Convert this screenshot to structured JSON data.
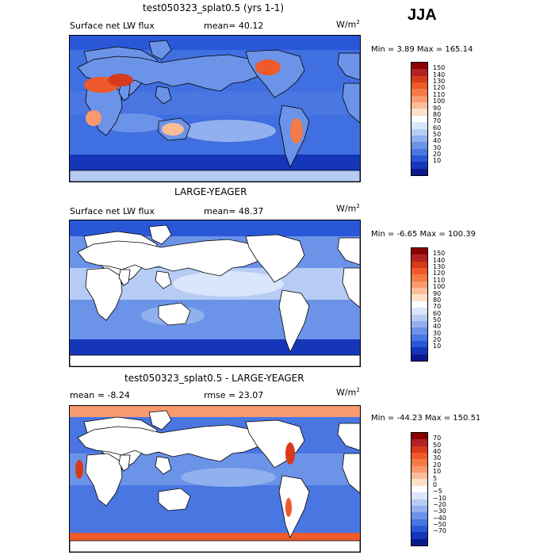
{
  "season": "JJA",
  "panels": [
    {
      "title": "test050323_splat0.5 (yrs 1-1)",
      "left_text": "Surface net LW flux",
      "stat_label": "mean=",
      "stat_value": "40.12",
      "units_base": "W/m",
      "units_exp": "2",
      "minmax": "Min =    3.89 Max = 165.14",
      "colorbar_labels": [
        "150",
        "140",
        "130",
        "120",
        "110",
        "100",
        "90",
        "80",
        "70",
        "60",
        "50",
        "40",
        "30",
        "20",
        "10"
      ],
      "colorbar_colors": [
        "#8b0000",
        "#b22222",
        "#d83a1c",
        "#ee5a2a",
        "#f47a48",
        "#f89a6e",
        "#fbbc98",
        "#fde0c8",
        "#ffffff",
        "#d9e6fb",
        "#b6ccf5",
        "#91b0ee",
        "#6b93e8",
        "#4a76e2",
        "#2a57d8",
        "#1536b8",
        "#0a1a8a"
      ],
      "base_color": "#3f6fe0",
      "land_mode": "warm"
    },
    {
      "title": "LARGE-YEAGER",
      "left_text": "Surface net LW flux",
      "stat_label": "mean=",
      "stat_value": "48.37",
      "units_base": "W/m",
      "units_exp": "2",
      "minmax": "Min =   -6.65 Max = 100.39",
      "colorbar_labels": [
        "150",
        "140",
        "130",
        "120",
        "110",
        "100",
        "90",
        "80",
        "70",
        "60",
        "50",
        "40",
        "30",
        "20",
        "10"
      ],
      "colorbar_colors": [
        "#8b0000",
        "#b22222",
        "#d83a1c",
        "#ee5a2a",
        "#f47a48",
        "#f89a6e",
        "#fbbc98",
        "#fde0c8",
        "#ffffff",
        "#d9e6fb",
        "#b6ccf5",
        "#91b0ee",
        "#6b93e8",
        "#4a76e2",
        "#2a57d8",
        "#1536b8",
        "#0a1a8a"
      ],
      "base_color": "#6b93e8",
      "land_mode": "blank"
    },
    {
      "title": "test050323_splat0.5 - LARGE-YEAGER",
      "left_text": "mean =   -8.24",
      "stat_label": "rmse =",
      "stat_value": "23.07",
      "units_base": "W/m",
      "units_exp": "2",
      "minmax": "Min = -44.23 Max = 150.51",
      "colorbar_labels": [
        "70",
        "50",
        "40",
        "30",
        "20",
        "10",
        "5",
        "0",
        "−5",
        "−10",
        "−20",
        "−30",
        "−40",
        "−50",
        "−70"
      ],
      "colorbar_colors": [
        "#8b0000",
        "#b22222",
        "#d83a1c",
        "#ee5a2a",
        "#f47a48",
        "#f89a6e",
        "#fbbc98",
        "#fde0c8",
        "#ffffff",
        "#d9e6fb",
        "#b6ccf5",
        "#91b0ee",
        "#6b93e8",
        "#4a76e2",
        "#2a57d8",
        "#1536b8",
        "#0a1a8a"
      ],
      "base_color": "#4a76e2",
      "land_mode": "blank"
    }
  ]
}
